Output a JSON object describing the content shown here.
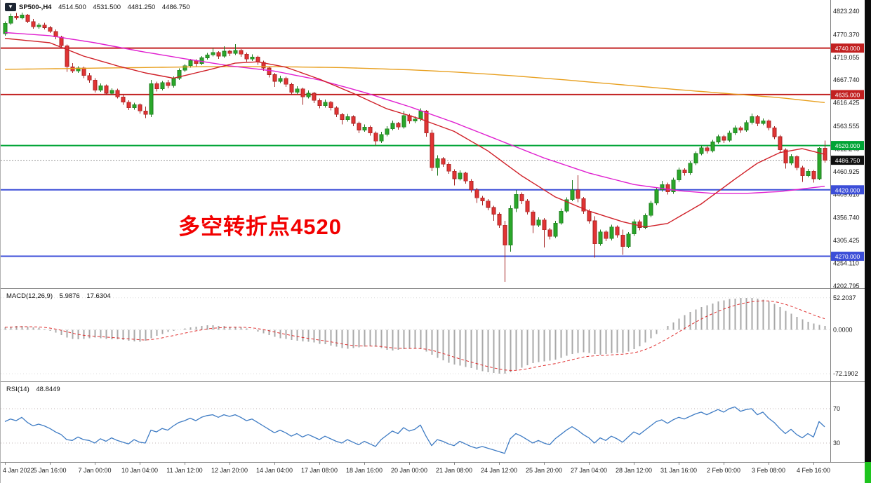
{
  "header": {
    "symbol_timeframe": "SP500-,H4",
    "open": "4514.500",
    "high": "4531.500",
    "low": "4481.250",
    "close": "4486.750"
  },
  "icons": {
    "chart_menu": "▼"
  },
  "annotation": {
    "text": "多空转折点4520"
  },
  "colors": {
    "bull": "#2aa82a",
    "bull_stroke": "#1d7a1d",
    "bear": "#e23434",
    "bear_stroke": "#a32121",
    "ma_fast": "#d02028",
    "ma_mid": "#e020d0",
    "ma_slow": "#e8a020",
    "level_red": "#c22020",
    "level_green": "#00a436",
    "level_blue": "#3c4ed8",
    "current_price_bg": "#101010",
    "macd_hist": "#a8a8a8",
    "macd_signal": "#e03030",
    "rsi_line": "#3f7cc4",
    "axis_text": "#1a1a1a",
    "annotation": "#f20000",
    "grid_dotted": "#c8c8c8",
    "right_strip": "#0b0b0b",
    "right_strip_accent": "#1ec41e"
  },
  "main_axis_labels": [
    "4823.240",
    "4770.370",
    "4719.055",
    "4667.740",
    "4616.425",
    "4563.555",
    "4512.240",
    "4460.925",
    "4409.610",
    "4356.740",
    "4305.425",
    "4254.110",
    "4202.795"
  ],
  "levels": [
    {
      "value": 4740.0,
      "label": "4740.000",
      "color": "#c22020"
    },
    {
      "value": 4635.0,
      "label": "4635.000",
      "color": "#c22020"
    },
    {
      "value": 4520.0,
      "label": "4520.000",
      "color": "#00a436"
    },
    {
      "value": 4420.0,
      "label": "4420.000",
      "color": "#3c4ed8"
    },
    {
      "value": 4270.0,
      "label": "4270.000",
      "color": "#3c4ed8"
    }
  ],
  "current_price": {
    "value": 4486.75,
    "label": "4486.750"
  },
  "indicators": {
    "macd": {
      "name": "MACD(12,26,9)",
      "value_main": "5.9876",
      "value_signal": "17.6304",
      "axis_labels": [
        "52.2037",
        "0.0000",
        "-72.1902"
      ]
    },
    "rsi": {
      "name": "RSI(14)",
      "value": "48.8449",
      "level_labels": [
        "70",
        "30"
      ],
      "levels": [
        70,
        30
      ]
    }
  },
  "time_axis_labels": [
    "4 Jan 2022",
    "5 Jan 16:00",
    "7 Jan 00:00",
    "10 Jan 04:00",
    "11 Jan 12:00",
    "12 Jan 20:00",
    "14 Jan 04:00",
    "17 Jan 08:00",
    "18 Jan 16:00",
    "20 Jan 00:00",
    "21 Jan 08:00",
    "24 Jan 12:00",
    "25 Jan 20:00",
    "27 Jan 04:00",
    "28 Jan 12:00",
    "31 Jan 16:00",
    "2 Feb 00:00",
    "3 Feb 08:00",
    "4 Feb 16:00"
  ],
  "chart_data": {
    "type": "candlestick",
    "symbol": "SP500",
    "timeframe": "H4",
    "x_range": [
      "4 Jan 2022",
      "4 Feb 2022 16:00"
    ],
    "price_axis": {
      "top": 4823.24,
      "bottom": 4202.795
    },
    "current_bar": {
      "open": 4514.5,
      "high": 4531.5,
      "low": 4481.25,
      "close": 4486.75
    },
    "horizontal_levels": [
      4740,
      4635,
      4520,
      4420,
      4270
    ],
    "candles": [
      [
        4772,
        4800,
        4768,
        4796
      ],
      [
        4796,
        4818,
        4792,
        4812
      ],
      [
        4812,
        4819,
        4804,
        4808
      ],
      [
        4808,
        4820,
        4805,
        4815
      ],
      [
        4815,
        4817,
        4796,
        4800
      ],
      [
        4800,
        4806,
        4784,
        4788
      ],
      [
        4788,
        4796,
        4784,
        4792
      ],
      [
        4792,
        4797,
        4782,
        4786
      ],
      [
        4786,
        4790,
        4774,
        4778
      ],
      [
        4778,
        4782,
        4760,
        4765
      ],
      [
        4765,
        4768,
        4740,
        4745
      ],
      [
        4745,
        4748,
        4686,
        4698
      ],
      [
        4698,
        4706,
        4684,
        4688
      ],
      [
        4688,
        4699,
        4684,
        4695
      ],
      [
        4695,
        4698,
        4672,
        4678
      ],
      [
        4678,
        4684,
        4662,
        4668
      ],
      [
        4668,
        4672,
        4640,
        4645
      ],
      [
        4645,
        4660,
        4641,
        4655
      ],
      [
        4655,
        4658,
        4634,
        4638
      ],
      [
        4638,
        4649,
        4634,
        4645
      ],
      [
        4645,
        4648,
        4626,
        4630
      ],
      [
        4630,
        4634,
        4612,
        4618
      ],
      [
        4618,
        4622,
        4600,
        4605
      ],
      [
        4605,
        4617,
        4601,
        4612
      ],
      [
        4612,
        4615,
        4592,
        4598
      ],
      [
        4598,
        4608,
        4582,
        4590
      ],
      [
        4590,
        4668,
        4584,
        4660
      ],
      [
        4660,
        4664,
        4642,
        4648
      ],
      [
        4648,
        4666,
        4644,
        4662
      ],
      [
        4662,
        4668,
        4649,
        4655
      ],
      [
        4655,
        4676,
        4651,
        4672
      ],
      [
        4672,
        4694,
        4668,
        4690
      ],
      [
        4690,
        4704,
        4686,
        4700
      ],
      [
        4700,
        4716,
        4696,
        4712
      ],
      [
        4712,
        4715,
        4699,
        4705
      ],
      [
        4705,
        4722,
        4701,
        4718
      ],
      [
        4718,
        4729,
        4714,
        4725
      ],
      [
        4725,
        4740,
        4721,
        4730
      ],
      [
        4730,
        4733,
        4716,
        4722
      ],
      [
        4722,
        4744,
        4718,
        4733
      ],
      [
        4733,
        4736,
        4722,
        4728
      ],
      [
        4728,
        4749,
        4724,
        4735
      ],
      [
        4735,
        4738,
        4720,
        4726
      ],
      [
        4726,
        4730,
        4709,
        4715
      ],
      [
        4715,
        4726,
        4711,
        4720
      ],
      [
        4720,
        4723,
        4702,
        4708
      ],
      [
        4708,
        4712,
        4689,
        4695
      ],
      [
        4695,
        4699,
        4674,
        4680
      ],
      [
        4680,
        4684,
        4652,
        4665
      ],
      [
        4665,
        4678,
        4661,
        4672
      ],
      [
        4672,
        4675,
        4652,
        4658
      ],
      [
        4658,
        4662,
        4634,
        4640
      ],
      [
        4640,
        4654,
        4636,
        4648
      ],
      [
        4648,
        4651,
        4612,
        4630
      ],
      [
        4630,
        4644,
        4626,
        4638
      ],
      [
        4638,
        4641,
        4616,
        4622
      ],
      [
        4622,
        4626,
        4604,
        4610
      ],
      [
        4610,
        4624,
        4606,
        4618
      ],
      [
        4618,
        4621,
        4599,
        4605
      ],
      [
        4605,
        4609,
        4584,
        4590
      ],
      [
        4590,
        4594,
        4568,
        4578
      ],
      [
        4578,
        4591,
        4574,
        4585
      ],
      [
        4585,
        4588,
        4564,
        4570
      ],
      [
        4570,
        4574,
        4548,
        4555
      ],
      [
        4555,
        4568,
        4551,
        4562
      ],
      [
        4562,
        4565,
        4542,
        4548
      ],
      [
        4548,
        4552,
        4520,
        4530
      ],
      [
        4530,
        4551,
        4526,
        4545
      ],
      [
        4545,
        4564,
        4541,
        4558
      ],
      [
        4558,
        4576,
        4554,
        4570
      ],
      [
        4570,
        4573,
        4556,
        4562
      ],
      [
        4562,
        4598,
        4558,
        4588
      ],
      [
        4588,
        4591,
        4569,
        4575
      ],
      [
        4575,
        4586,
        4571,
        4580
      ],
      [
        4580,
        4604,
        4575,
        4598
      ],
      [
        4598,
        4600,
        4540,
        4548
      ],
      [
        4548,
        4556,
        4462,
        4470
      ],
      [
        4470,
        4498,
        4452,
        4490
      ],
      [
        4490,
        4494,
        4472,
        4478
      ],
      [
        4478,
        4482,
        4456,
        4462
      ],
      [
        4462,
        4466,
        4430,
        4445
      ],
      [
        4445,
        4464,
        4441,
        4458
      ],
      [
        4458,
        4461,
        4434,
        4440
      ],
      [
        4440,
        4444,
        4414,
        4420
      ],
      [
        4420,
        4424,
        4390,
        4402
      ],
      [
        4402,
        4406,
        4385,
        4395
      ],
      [
        4395,
        4399,
        4374,
        4380
      ],
      [
        4380,
        4384,
        4350,
        4365
      ],
      [
        4365,
        4369,
        4334,
        4340
      ],
      [
        4340,
        4350,
        4212,
        4295
      ],
      [
        4295,
        4385,
        4280,
        4378
      ],
      [
        4378,
        4420,
        4370,
        4410
      ],
      [
        4410,
        4414,
        4388,
        4395
      ],
      [
        4395,
        4399,
        4364,
        4370
      ],
      [
        4370,
        4374,
        4322,
        4340
      ],
      [
        4340,
        4358,
        4336,
        4352
      ],
      [
        4352,
        4356,
        4290,
        4330
      ],
      [
        4330,
        4334,
        4308,
        4315
      ],
      [
        4315,
        4350,
        4311,
        4345
      ],
      [
        4345,
        4378,
        4341,
        4372
      ],
      [
        4372,
        4403,
        4368,
        4398
      ],
      [
        4398,
        4442,
        4394,
        4420
      ],
      [
        4420,
        4453,
        4392,
        4400
      ],
      [
        4400,
        4404,
        4366,
        4372
      ],
      [
        4372,
        4376,
        4344,
        4350
      ],
      [
        4350,
        4360,
        4267,
        4298
      ],
      [
        4298,
        4330,
        4294,
        4325
      ],
      [
        4325,
        4329,
        4304,
        4310
      ],
      [
        4310,
        4341,
        4306,
        4336
      ],
      [
        4336,
        4340,
        4312,
        4318
      ],
      [
        4318,
        4330,
        4273,
        4292
      ],
      [
        4292,
        4325,
        4288,
        4320
      ],
      [
        4320,
        4353,
        4316,
        4348
      ],
      [
        4348,
        4352,
        4329,
        4335
      ],
      [
        4335,
        4367,
        4331,
        4362
      ],
      [
        4362,
        4395,
        4358,
        4390
      ],
      [
        4390,
        4425,
        4386,
        4420
      ],
      [
        4420,
        4440,
        4416,
        4432
      ],
      [
        4432,
        4436,
        4409,
        4415
      ],
      [
        4415,
        4447,
        4411,
        4442
      ],
      [
        4442,
        4470,
        4438,
        4465
      ],
      [
        4465,
        4469,
        4452,
        4458
      ],
      [
        4458,
        4485,
        4454,
        4480
      ],
      [
        4480,
        4507,
        4476,
        4502
      ],
      [
        4502,
        4520,
        4498,
        4515
      ],
      [
        4515,
        4519,
        4502,
        4508
      ],
      [
        4508,
        4533,
        4504,
        4528
      ],
      [
        4528,
        4545,
        4524,
        4540
      ],
      [
        4540,
        4544,
        4526,
        4532
      ],
      [
        4532,
        4553,
        4528,
        4548
      ],
      [
        4548,
        4565,
        4544,
        4560
      ],
      [
        4560,
        4564,
        4549,
        4555
      ],
      [
        4555,
        4577,
        4551,
        4572
      ],
      [
        4572,
        4592,
        4568,
        4585
      ],
      [
        4585,
        4589,
        4564,
        4570
      ],
      [
        4570,
        4581,
        4566,
        4576
      ],
      [
        4576,
        4579,
        4554,
        4560
      ],
      [
        4560,
        4564,
        4534,
        4540
      ],
      [
        4540,
        4544,
        4504,
        4510
      ],
      [
        4510,
        4514,
        4468,
        4480
      ],
      [
        4480,
        4500,
        4476,
        4495
      ],
      [
        4495,
        4498,
        4464,
        4470
      ],
      [
        4470,
        4474,
        4438,
        4452
      ],
      [
        4452,
        4467,
        4448,
        4462
      ],
      [
        4462,
        4465,
        4436,
        4445
      ],
      [
        4445,
        4516,
        4442,
        4514
      ],
      [
        4514.5,
        4531.5,
        4481.25,
        4486.75
      ]
    ],
    "ma_fast_points": [
      [
        0,
        4762
      ],
      [
        8,
        4752
      ],
      [
        14,
        4722
      ],
      [
        20,
        4700
      ],
      [
        25,
        4684
      ],
      [
        30,
        4672
      ],
      [
        36,
        4690
      ],
      [
        41,
        4706
      ],
      [
        45,
        4709
      ],
      [
        50,
        4697
      ],
      [
        56,
        4670
      ],
      [
        62,
        4638
      ],
      [
        68,
        4603
      ],
      [
        74,
        4580
      ],
      [
        80,
        4552
      ],
      [
        86,
        4508
      ],
      [
        92,
        4452
      ],
      [
        98,
        4404
      ],
      [
        104,
        4372
      ],
      [
        110,
        4348
      ],
      [
        114,
        4336
      ],
      [
        118,
        4344
      ],
      [
        124,
        4388
      ],
      [
        130,
        4444
      ],
      [
        134,
        4480
      ],
      [
        138,
        4504
      ],
      [
        142,
        4513
      ],
      [
        146,
        4500
      ]
    ],
    "ma_mid_points": [
      [
        0,
        4775
      ],
      [
        8,
        4768
      ],
      [
        16,
        4752
      ],
      [
        24,
        4733
      ],
      [
        32,
        4716
      ],
      [
        40,
        4700
      ],
      [
        48,
        4688
      ],
      [
        56,
        4668
      ],
      [
        64,
        4640
      ],
      [
        72,
        4608
      ],
      [
        80,
        4572
      ],
      [
        88,
        4532
      ],
      [
        96,
        4492
      ],
      [
        104,
        4458
      ],
      [
        112,
        4432
      ],
      [
        120,
        4418
      ],
      [
        126,
        4412
      ],
      [
        132,
        4412
      ],
      [
        138,
        4416
      ],
      [
        146,
        4428
      ]
    ],
    "ma_slow_points": [
      [
        0,
        4692
      ],
      [
        12,
        4694
      ],
      [
        24,
        4696
      ],
      [
        36,
        4698
      ],
      [
        48,
        4698
      ],
      [
        60,
        4696
      ],
      [
        72,
        4691
      ],
      [
        80,
        4686
      ],
      [
        90,
        4678
      ],
      [
        100,
        4668
      ],
      [
        110,
        4657
      ],
      [
        120,
        4646
      ],
      [
        130,
        4636
      ],
      [
        138,
        4628
      ],
      [
        146,
        4617
      ]
    ],
    "macd_histogram": [
      4,
      5,
      6,
      6,
      5,
      4,
      3,
      1,
      -2,
      -5,
      -9,
      -13,
      -15,
      -16,
      -15,
      -14,
      -13,
      -14,
      -15,
      -16,
      -16,
      -17,
      -18,
      -19,
      -20,
      -18,
      -14,
      -10,
      -7,
      -4,
      -2,
      0,
      2,
      4,
      5,
      6,
      7,
      7,
      6,
      6,
      5,
      5,
      4,
      2,
      0,
      -3,
      -6,
      -9,
      -12,
      -14,
      -15,
      -17,
      -18,
      -19,
      -20,
      -21,
      -23,
      -24,
      -26,
      -28,
      -30,
      -31,
      -30,
      -29,
      -28,
      -27,
      -28,
      -30,
      -33,
      -34,
      -33,
      -32,
      -31,
      -30,
      -32,
      -36,
      -41,
      -46,
      -50,
      -54,
      -57,
      -59,
      -61,
      -63,
      -66,
      -68,
      -70,
      -71,
      -72,
      -72,
      -70,
      -66,
      -62,
      -58,
      -55,
      -53,
      -52,
      -51,
      -49,
      -46,
      -43,
      -40,
      -38,
      -37,
      -38,
      -40,
      -41,
      -40,
      -39,
      -38,
      -38,
      -36,
      -32,
      -27,
      -21,
      -14,
      -7,
      0,
      6,
      12,
      18,
      24,
      29,
      33,
      37,
      40,
      43,
      46,
      48,
      50,
      51,
      52,
      52,
      52,
      51,
      49,
      46,
      42,
      37,
      31,
      26,
      21,
      17,
      13,
      10,
      8,
      6
    ],
    "macd_axis": {
      "top": 52.2037,
      "zero": 0.0,
      "bottom": -72.1902
    },
    "rsi_values": [
      55,
      58,
      56,
      60,
      54,
      50,
      52,
      50,
      47,
      43,
      40,
      34,
      33,
      37,
      34,
      33,
      30,
      35,
      32,
      36,
      33,
      31,
      29,
      34,
      31,
      30,
      45,
      43,
      47,
      45,
      50,
      54,
      56,
      59,
      56,
      60,
      62,
      63,
      60,
      63,
      61,
      63,
      60,
      56,
      58,
      54,
      50,
      46,
      42,
      45,
      42,
      38,
      41,
      37,
      40,
      37,
      34,
      38,
      35,
      32,
      30,
      34,
      31,
      28,
      32,
      29,
      26,
      34,
      39,
      44,
      41,
      48,
      44,
      46,
      51,
      38,
      27,
      34,
      32,
      29,
      27,
      32,
      29,
      26,
      24,
      26,
      24,
      22,
      20,
      18,
      35,
      41,
      38,
      34,
      30,
      33,
      30,
      28,
      35,
      40,
      45,
      49,
      45,
      40,
      36,
      30,
      36,
      33,
      38,
      35,
      31,
      37,
      43,
      40,
      45,
      50,
      55,
      57,
      53,
      57,
      60,
      58,
      61,
      64,
      66,
      63,
      66,
      69,
      66,
      70,
      72,
      67,
      69,
      70,
      63,
      66,
      59,
      54,
      47,
      41,
      46,
      40,
      36,
      41,
      37,
      55,
      48.84
    ]
  }
}
